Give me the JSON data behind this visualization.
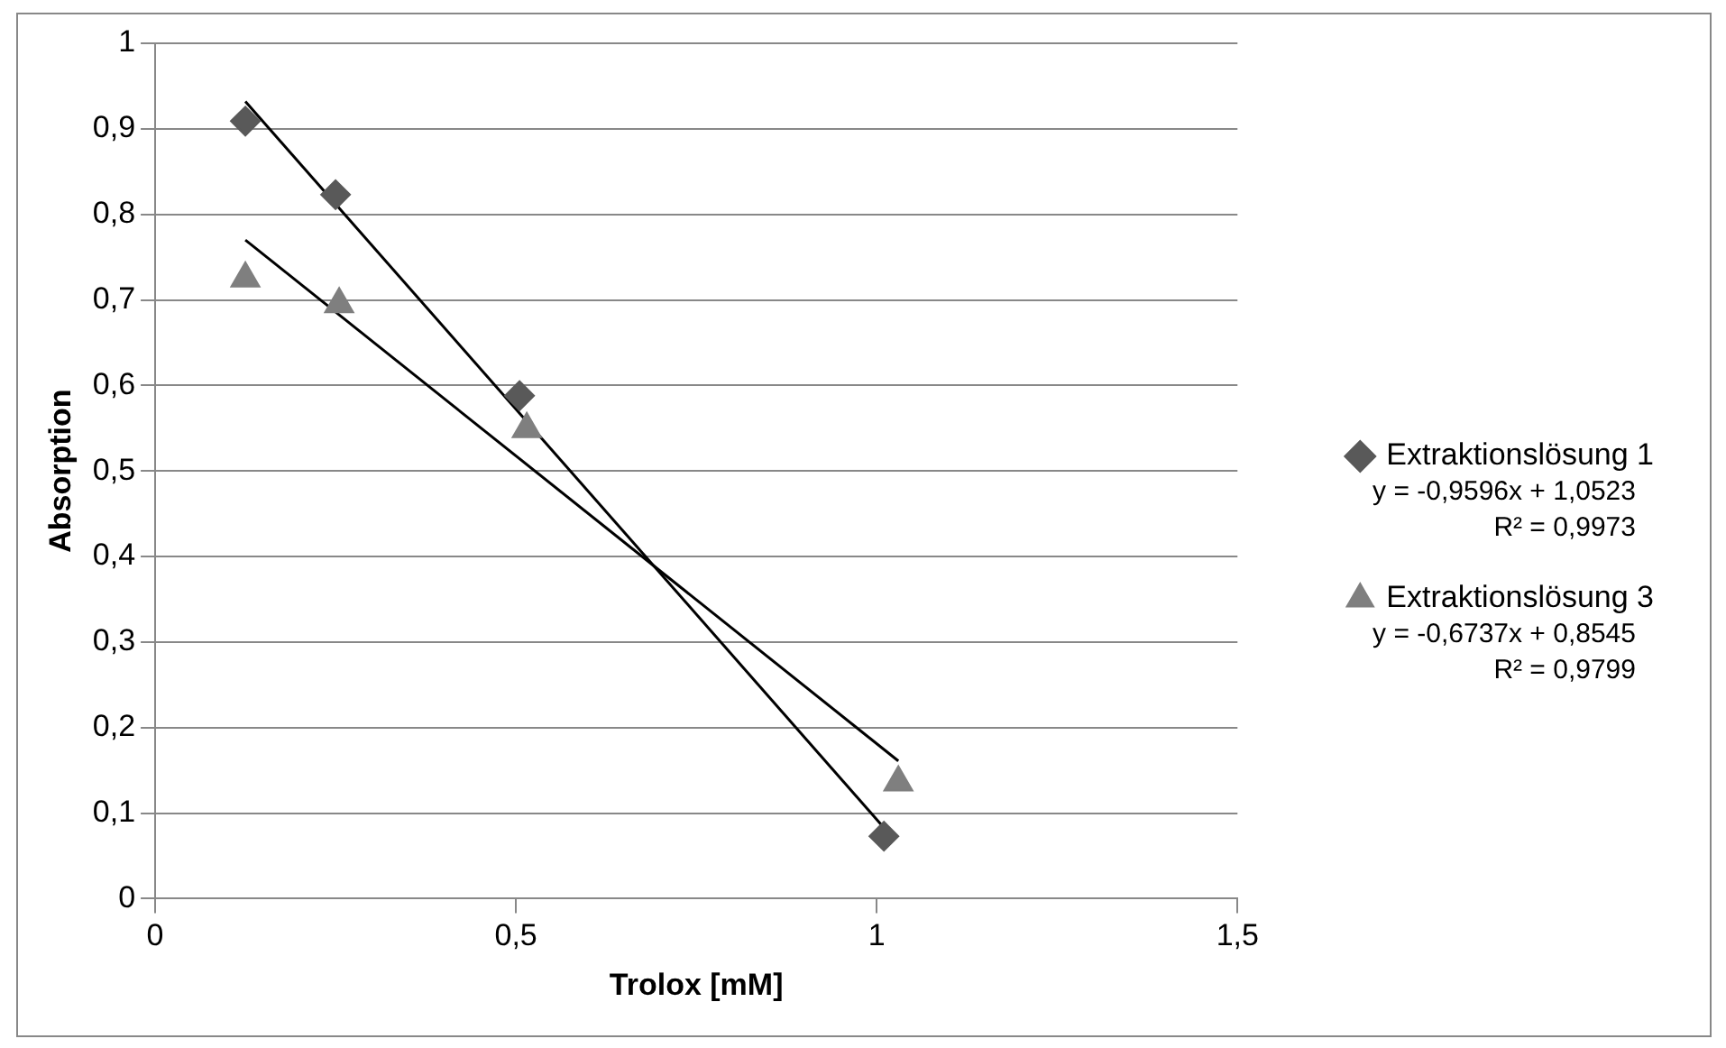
{
  "chart_data": {
    "type": "scatter",
    "xlabel": "Trolox [mM]",
    "ylabel": "Absorption",
    "xlim": [
      0,
      1.5
    ],
    "xticks": [
      0,
      {
        "value": 0.5,
        "label": "0,5"
      },
      1,
      {
        "value": 1.5,
        "label": "1,5"
      }
    ],
    "ylim": [
      0,
      1
    ],
    "yticks": [
      0,
      {
        "value": 0.1,
        "label": "0,1"
      },
      {
        "value": 0.2,
        "label": "0,2"
      },
      {
        "value": 0.3,
        "label": "0,3"
      },
      {
        "value": 0.4,
        "label": "0,4"
      },
      {
        "value": 0.5,
        "label": "0,5"
      },
      {
        "value": 0.6,
        "label": "0,6"
      },
      {
        "value": 0.7,
        "label": "0,7"
      },
      {
        "value": 0.8,
        "label": "0,8"
      },
      {
        "value": 0.9,
        "label": "0,9"
      },
      1
    ],
    "grid": "y",
    "legend": "right",
    "series": [
      {
        "name": "Extraktionslösung 1",
        "color": "#595959",
        "marker": "diamond",
        "x": [
          0.125,
          0.25,
          0.505,
          1.01
        ],
        "values": [
          0.909,
          0.823,
          0.588,
          0.073
        ]
      },
      {
        "name": "Extraktionslösung 3",
        "color": "#7f7f7f",
        "marker": "triangle",
        "x": [
          0.125,
          0.255,
          0.515,
          1.03
        ],
        "values": [
          0.725,
          0.695,
          0.549,
          0.136
        ]
      },
      {
        "type": "line",
        "color": "#000000",
        "marker": "none",
        "x": [
          0.125,
          1.01
        ],
        "values": [
          0.932,
          0.083
        ]
      },
      {
        "type": "line",
        "color": "#000000",
        "marker": "none",
        "x": [
          0.125,
          1.03
        ],
        "values": [
          0.77,
          0.161
        ]
      }
    ],
    "annotations": [
      "y = -0,9596x + 1,0523",
      "R² = 0,9973",
      "y = -0,6737x + 0,8545",
      "R² = 0,9799"
    ]
  }
}
